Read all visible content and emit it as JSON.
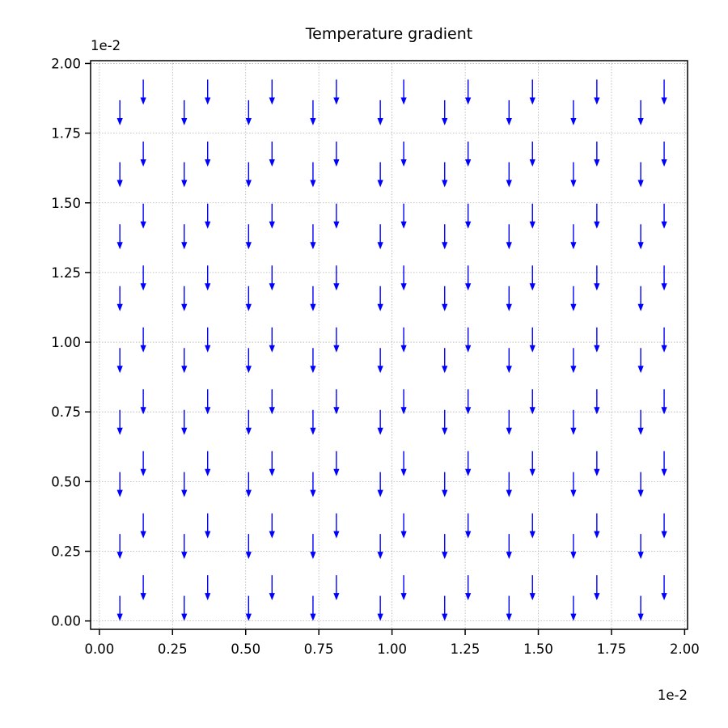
{
  "chart_data": {
    "type": "quiver",
    "title": "Temperature gradient",
    "xlabel": "",
    "ylabel": "",
    "x_offset_text": "1e-2",
    "y_offset_text": "1e-2",
    "x_scale_factor": 0.01,
    "y_scale_factor": 0.01,
    "xlim": [
      -0.0003,
      0.0201
    ],
    "ylim": [
      -0.0003,
      0.0201
    ],
    "x_ticks": [
      0.0,
      0.0025,
      0.005,
      0.0075,
      0.01,
      0.0125,
      0.015,
      0.0175,
      0.02
    ],
    "x_tick_labels": [
      "0.00",
      "0.25",
      "0.50",
      "0.75",
      "1.00",
      "1.25",
      "1.50",
      "1.75",
      "2.00"
    ],
    "y_ticks": [
      0.0,
      0.0025,
      0.005,
      0.0075,
      0.01,
      0.0125,
      0.015,
      0.0175,
      0.02
    ],
    "y_tick_labels": [
      "0.00",
      "0.25",
      "0.50",
      "0.75",
      "1.00",
      "1.25",
      "1.50",
      "1.75",
      "2.00"
    ],
    "grid": true,
    "arrow_color": "#0000ff",
    "lattice_a": {
      "x": [
        0.0007,
        0.0029,
        0.0051,
        0.0073,
        0.0096,
        0.0118,
        0.014,
        0.0162,
        0.0185
      ],
      "y": [
        0.0,
        0.00222,
        0.00444,
        0.00667,
        0.00889,
        0.01111,
        0.01333,
        0.01556,
        0.01778
      ]
    },
    "lattice_b": {
      "x": [
        0.0015,
        0.0037,
        0.0059,
        0.0081,
        0.0104,
        0.0126,
        0.0148,
        0.017,
        0.0193
      ],
      "y": [
        0.00074,
        0.00296,
        0.00519,
        0.00741,
        0.00963,
        0.01185,
        0.01407,
        0.0163,
        0.01852
      ]
    },
    "vector": {
      "u": 0.0,
      "v": -0.0009
    }
  }
}
